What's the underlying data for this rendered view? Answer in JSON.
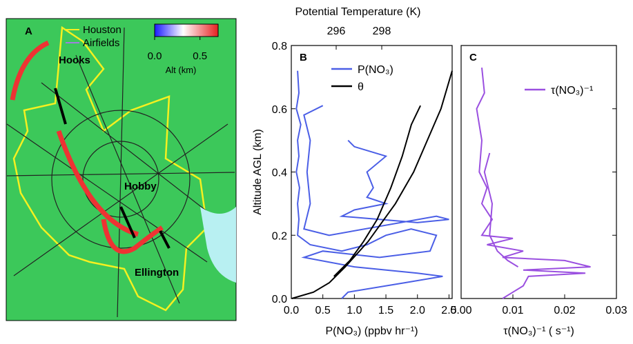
{
  "map": {
    "panel_label": "A",
    "legend": [
      "Houston",
      "Airfields"
    ],
    "colorbar": {
      "lim": [
        0,
        0.7
      ],
      "ticks": [
        {
          "value": 0,
          "label": "0.0"
        },
        0.5
      ],
      "label": "Alt (km)"
    },
    "places": [
      "Hooks",
      "Hobby",
      "Ellington"
    ]
  },
  "chart_data": [
    {
      "type": "line",
      "panel_label": "B",
      "ylabel": "Altitude AGL (km)",
      "xlabel": "P(NO₃) (ppbv hr⁻¹)",
      "x2label": "Potential Temperature (K)",
      "xlim": [
        0,
        2.55
      ],
      "xticks": [
        {
          "value": 0,
          "label": "0.0"
        },
        0.5,
        {
          "value": 1,
          "label": "1.0"
        },
        1.5,
        {
          "value": 2,
          "label": "2.0"
        },
        2.5
      ],
      "x2lim": [
        294.03,
        301.09
      ],
      "x2ticks": [
        296,
        298
      ],
      "ylim": [
        0,
        0.8
      ],
      "yticks": [
        {
          "value": 0,
          "label": "0.0"
        },
        0.2,
        0.4,
        0.6,
        0.8
      ],
      "series": [
        {
          "name": "P(NO₃)",
          "color": "#4a5ee6",
          "x": [
            0.1,
            0.12,
            0.08,
            0.15,
            0.1,
            0.12,
            0.08,
            0.13,
            0.1,
            0.12,
            0.1,
            0.3,
            0.8,
            1.2,
            1.5,
            1.9,
            2.3,
            2.2,
            1.4,
            0.5,
            0.2,
            1.0,
            2.0,
            2.4,
            1.8,
            0.9,
            0.8,
            null,
            0.5,
            0.2,
            0.3,
            0.25,
            0.3,
            0.2,
            0.6,
            2.3,
            2.5,
            2.0,
            0.8,
            1.0,
            1.5,
            1.2,
            1.3,
            1.2,
            1.5,
            1.0,
            0.9
          ],
          "y": [
            0.72,
            0.65,
            0.6,
            0.55,
            0.5,
            0.45,
            0.4,
            0.35,
            0.3,
            0.25,
            0.2,
            0.17,
            0.15,
            0.17,
            0.2,
            0.22,
            0.2,
            0.15,
            0.13,
            0.15,
            0.13,
            0.1,
            0.08,
            0.07,
            0.05,
            0.02,
            0.0,
            null,
            0.61,
            0.58,
            0.5,
            0.4,
            0.3,
            0.22,
            0.2,
            0.26,
            0.25,
            0.24,
            0.26,
            0.28,
            0.3,
            0.32,
            0.35,
            0.4,
            0.45,
            0.48,
            0.5
          ]
        },
        {
          "name": "θ",
          "color": "#000000",
          "axis": "x2",
          "x": [
            294.05,
            295.0,
            295.7,
            296.4,
            297.4,
            298.0,
            298.6,
            299.4,
            300.0,
            300.6,
            301.09,
            null,
            295.9,
            296.6,
            297.2,
            297.8,
            298.4,
            298.9,
            299.3,
            299.7
          ],
          "y": [
            0.0,
            0.02,
            0.05,
            0.1,
            0.18,
            0.24,
            0.3,
            0.4,
            0.5,
            0.6,
            0.72,
            null,
            0.07,
            0.12,
            0.18,
            0.25,
            0.35,
            0.45,
            0.55,
            0.61
          ]
        }
      ]
    },
    {
      "type": "line",
      "panel_label": "C",
      "xlabel": "τ(NO₃)⁻¹ ( s⁻¹)",
      "xlim": [
        0,
        0.03
      ],
      "xticks": [
        {
          "value": 0,
          "label": "0.00"
        },
        0.01,
        0.02,
        0.03
      ],
      "ylim": [
        0,
        0.8
      ],
      "yticks": [
        0,
        0.2,
        0.4,
        0.6,
        0.8
      ],
      "series": [
        {
          "name": "τ(NO₃)⁻¹",
          "color": "#9a4fe0",
          "x": [
            0.004,
            0.0045,
            0.003,
            0.004,
            0.0035,
            0.005,
            0.004,
            0.006,
            0.004,
            0.01,
            0.005,
            0.012,
            0.008,
            0.02,
            0.025,
            0.012,
            0.024,
            0.013,
            0.012,
            0.01,
            0.008,
            null,
            0.0055,
            0.0045,
            0.006,
            0.0055,
            0.007,
            0.009,
            0.011
          ],
          "y": [
            0.73,
            0.65,
            0.6,
            0.5,
            0.4,
            0.35,
            0.3,
            0.25,
            0.2,
            0.19,
            0.17,
            0.15,
            0.13,
            0.12,
            0.1,
            0.09,
            0.08,
            0.07,
            0.04,
            0.02,
            0.0,
            null,
            0.46,
            0.4,
            0.3,
            0.2,
            0.15,
            0.12,
            0.1
          ]
        }
      ]
    }
  ]
}
